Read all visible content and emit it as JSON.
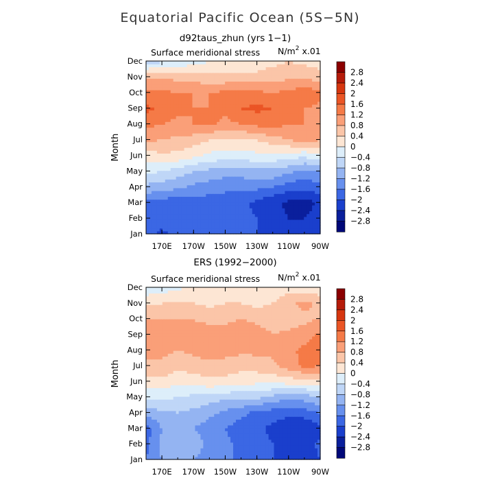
{
  "figure": {
    "title": "Equatorial Pacific Ocean (5S−5N)"
  },
  "colorbar": {
    "levels": [
      "2.8",
      "2.4",
      "2",
      "1.6",
      "1.2",
      "0.8",
      "0.4",
      "0",
      "−0.4",
      "−0.8",
      "−1.2",
      "−1.6",
      "−2",
      "−2.4",
      "−2.8"
    ],
    "colors": [
      "#8b0000",
      "#b51b0a",
      "#d6360f",
      "#eb5525",
      "#f57a47",
      "#fa9f78",
      "#fbc5a8",
      "#fde6d4",
      "#ddeefa",
      "#bfd6f7",
      "#94b4f2",
      "#6790ee",
      "#3b67e4",
      "#1a3fcc",
      "#0a1f9c",
      "#000878"
    ]
  },
  "chart_data": [
    {
      "type": "heatmap",
      "title": "d92taus_zhun (yrs 1−1)",
      "variable": "Surface meridional stress",
      "units": "N/m² x.01",
      "unit_base": "N/m",
      "unit_exp": "2",
      "unit_suffix": " x.01",
      "xlabel": "",
      "ylabel": "Month",
      "x_ticks": [
        "170E",
        "170W",
        "150W",
        "130W",
        "110W",
        "90W"
      ],
      "y_ticks": [
        "Jan",
        "Feb",
        "Mar",
        "Apr",
        "May",
        "Jun",
        "Jul",
        "Aug",
        "Sep",
        "Oct",
        "Nov",
        "Dec"
      ],
      "x_values_deg_east": [
        160,
        170,
        180,
        190,
        200,
        210,
        220,
        230,
        240,
        250,
        260,
        270
      ],
      "values": [
        [
          -1.9,
          -2.1,
          -1.9,
          -1.7,
          -1.8,
          -1.8,
          -1.9,
          -2.0,
          -2.0,
          -2.2,
          -2.3,
          -2.1
        ],
        [
          -1.7,
          -1.8,
          -1.7,
          -1.6,
          -1.7,
          -1.8,
          -1.9,
          -2.0,
          -2.2,
          -2.4,
          -2.4,
          -2.2
        ],
        [
          -1.7,
          -1.8,
          -1.9,
          -1.8,
          -1.8,
          -1.8,
          -1.9,
          -2.1,
          -2.3,
          -2.5,
          -2.6,
          -2.3
        ],
        [
          -0.9,
          -1.0,
          -1.1,
          -1.3,
          -1.4,
          -1.5,
          -1.5,
          -1.5,
          -1.6,
          -1.8,
          -1.9,
          -1.7
        ],
        [
          -0.3,
          -0.4,
          -0.6,
          -0.8,
          -0.9,
          -1.0,
          -1.0,
          -0.9,
          -0.9,
          -1.1,
          -1.3,
          -1.2
        ],
        [
          0.2,
          0.3,
          0.3,
          0.1,
          -0.1,
          -0.2,
          -0.2,
          -0.1,
          -0.1,
          -0.2,
          -0.3,
          -0.1
        ],
        [
          0.9,
          0.8,
          0.7,
          0.6,
          0.4,
          0.3,
          0.3,
          0.4,
          0.6,
          0.8,
          1.0,
          0.8
        ],
        [
          1.3,
          1.2,
          1.1,
          1.2,
          1.3,
          1.1,
          1.2,
          1.3,
          1.4,
          1.2,
          1.2,
          1.1
        ],
        [
          1.7,
          1.5,
          1.3,
          1.2,
          1.2,
          1.3,
          1.6,
          1.7,
          1.6,
          1.3,
          1.2,
          1.1
        ],
        [
          1.3,
          1.3,
          1.2,
          1.2,
          1.2,
          1.3,
          1.4,
          1.3,
          1.2,
          1.3,
          1.5,
          1.3
        ],
        [
          0.8,
          0.7,
          0.7,
          0.6,
          0.5,
          0.5,
          0.5,
          0.5,
          0.6,
          0.7,
          0.7,
          0.6
        ],
        [
          -0.7,
          -0.5,
          -0.3,
          -0.2,
          0.0,
          0.2,
          0.2,
          0.2,
          0.3,
          0.4,
          0.3,
          0.2
        ]
      ],
      "vmin": -3.2,
      "vmax": 3.2
    },
    {
      "type": "heatmap",
      "title": "ERS (1992−2000)",
      "variable": "Surface meridional stress",
      "units": "N/m² x.01",
      "unit_base": "N/m",
      "unit_exp": "2",
      "unit_suffix": " x.01",
      "xlabel": "",
      "ylabel": "Month",
      "x_ticks": [
        "170E",
        "170W",
        "150W",
        "130W",
        "110W",
        "90W"
      ],
      "y_ticks": [
        "Jan",
        "Feb",
        "Mar",
        "Apr",
        "May",
        "Jun",
        "Jul",
        "Aug",
        "Sep",
        "Oct",
        "Nov",
        "Dec"
      ],
      "x_values_deg_east": [
        160,
        170,
        180,
        190,
        200,
        210,
        220,
        230,
        240,
        250,
        260,
        270
      ],
      "values": [
        [
          -1.6,
          -1.2,
          -1.1,
          -1.2,
          -1.4,
          -1.5,
          -1.7,
          -1.8,
          -2.0,
          -2.2,
          -2.3,
          -2.0
        ],
        [
          -1.7,
          -1.1,
          -1.0,
          -1.0,
          -1.3,
          -1.5,
          -1.7,
          -1.8,
          -2.0,
          -2.1,
          -2.2,
          -1.9
        ],
        [
          -1.8,
          -1.2,
          -1.1,
          -1.2,
          -1.4,
          -1.6,
          -1.8,
          -1.9,
          -2.1,
          -2.3,
          -2.4,
          -2.1
        ],
        [
          -1.0,
          -0.9,
          -0.8,
          -0.9,
          -1.1,
          -1.3,
          -1.5,
          -1.7,
          -1.8,
          -1.9,
          -1.8,
          -1.6
        ],
        [
          -0.3,
          -0.3,
          -0.4,
          -0.5,
          -0.6,
          -0.7,
          -0.7,
          -0.7,
          -0.9,
          -1.1,
          -1.0,
          -0.8
        ],
        [
          0.3,
          0.3,
          0.1,
          0.2,
          0.3,
          0.3,
          0.2,
          0.1,
          0.1,
          0.2,
          0.2,
          0.3
        ],
        [
          0.7,
          0.7,
          0.5,
          0.6,
          0.7,
          0.6,
          0.5,
          0.6,
          0.7,
          1.0,
          1.3,
          1.2
        ],
        [
          1.0,
          0.9,
          0.8,
          0.9,
          1.0,
          1.0,
          0.9,
          0.9,
          0.9,
          1.1,
          1.3,
          1.4
        ],
        [
          1.1,
          0.9,
          0.8,
          0.9,
          1.0,
          1.0,
          1.1,
          1.0,
          0.8,
          0.9,
          1.0,
          1.3
        ],
        [
          0.8,
          0.8,
          0.8,
          0.8,
          0.7,
          0.7,
          0.8,
          0.7,
          0.6,
          0.6,
          0.7,
          0.8
        ],
        [
          0.3,
          0.4,
          0.5,
          0.4,
          0.3,
          0.4,
          0.4,
          0.3,
          0.4,
          0.7,
          0.9,
          0.7
        ],
        [
          -0.3,
          -0.2,
          -0.1,
          0.1,
          0.2,
          0.2,
          0.1,
          0.0,
          0.1,
          0.2,
          0.2,
          0.1
        ]
      ],
      "vmin": -3.2,
      "vmax": 3.2
    }
  ]
}
